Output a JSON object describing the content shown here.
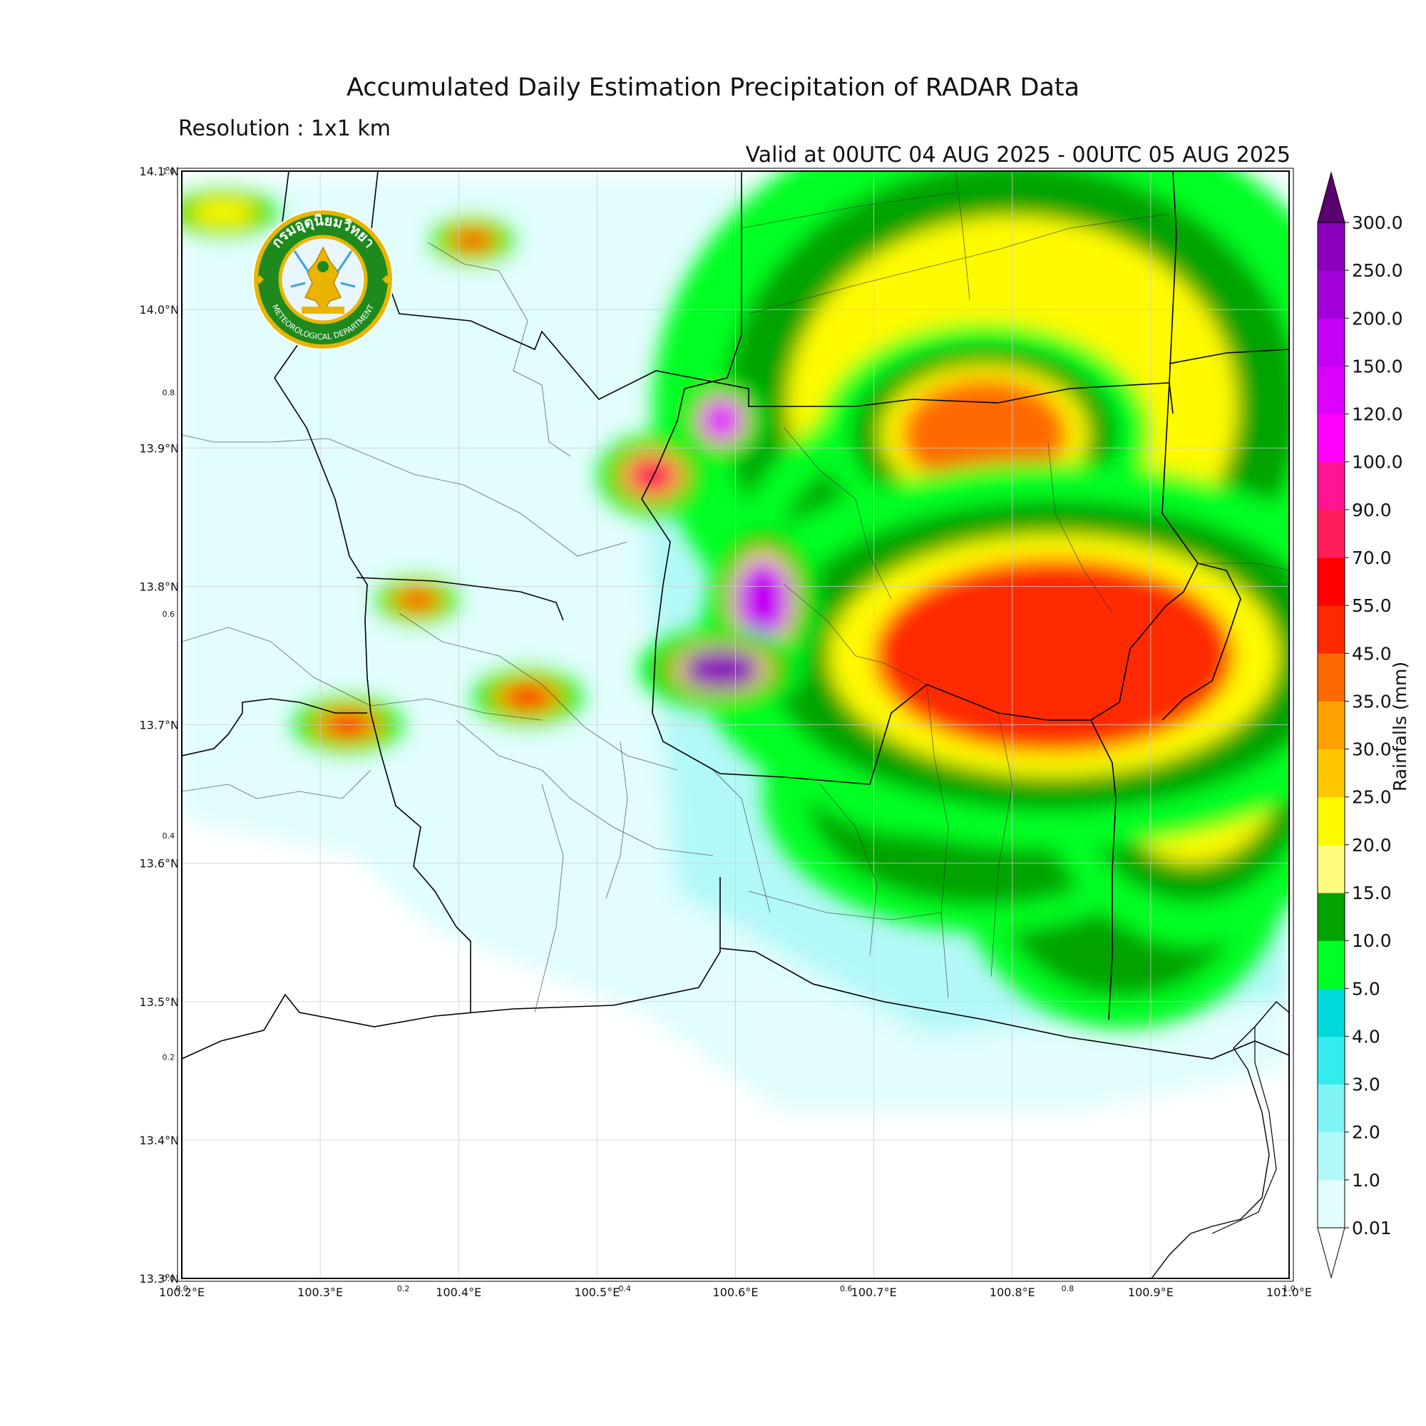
{
  "title": "Accumulated Daily Estimation Precipitation of RADAR Data",
  "subtitle": "Resolution : 1x1 km",
  "valid": "Valid at 00UTC 04 AUG 2025 - 00UTC 05 AUG 2025",
  "logo": {
    "text_top": "กรมอุตุนิยมวิทยา",
    "text_bottom": "METEOROLOGICAL DEPARTMENT",
    "ring_color": "#1e8a1e",
    "gold_color": "#e9b500"
  },
  "lat_labels": [
    "14.1°N",
    "14.0°N",
    "13.9°N",
    "13.8°N",
    "13.7°N",
    "13.6°N",
    "13.5°N",
    "13.4°N",
    "13.3°N"
  ],
  "lon_labels": [
    "100.2°E",
    "100.3°E",
    "100.4°E",
    "100.5°E",
    "100.6°E",
    "100.7°E",
    "100.8°E",
    "100.9°E",
    "101.0°E"
  ],
  "minor_y_labels": [
    "1.0",
    "0.8",
    "0.6",
    "0.4",
    "0.2",
    "0.0"
  ],
  "minor_x_labels": [
    "0.0",
    "0.2",
    "0.4",
    "0.6",
    "0.8",
    "1.0"
  ],
  "colorbar": {
    "label": "Rainfalls (mm)",
    "levels": [
      "0.01",
      "1.0",
      "2.0",
      "3.0",
      "4.0",
      "5.0",
      "10.0",
      "15.0",
      "20.0",
      "25.0",
      "30.0",
      "35.0",
      "45.0",
      "55.0",
      "70.0",
      "90.0",
      "100.0",
      "120.0",
      "150.0",
      "200.0",
      "250.0",
      "300.0"
    ],
    "colors": [
      "#e1fdfd",
      "#b3f8f8",
      "#7ff4f4",
      "#33ecec",
      "#00d9d9",
      "#00ff22",
      "#00a300",
      "#fffc80",
      "#fffa00",
      "#ffc800",
      "#ffa100",
      "#ff6a00",
      "#ff2b00",
      "#ff0000",
      "#ff1e5a",
      "#ff1493",
      "#ff00ff",
      "#dd00ff",
      "#c400f5",
      "#a100d9",
      "#8a00bc"
    ],
    "extend_min_color": "#ffffff",
    "extend_max_color": "#5a0070"
  },
  "map_extent": {
    "lon": [
      100.2,
      101.0
    ],
    "lat": [
      13.3,
      14.1
    ]
  },
  "rain_cells": [
    {
      "lon": 100.83,
      "lat": 13.75,
      "mm": 45,
      "rlon": 0.13,
      "rlat": 0.07
    },
    {
      "lon": 100.8,
      "lat": 13.93,
      "mm": 20,
      "rlon": 0.13,
      "rlat": 0.11
    },
    {
      "lon": 100.78,
      "lat": 13.91,
      "mm": 40,
      "rlon": 0.06,
      "rlat": 0.04
    },
    {
      "lon": 100.93,
      "lat": 13.7,
      "mm": 20,
      "rlon": 0.06,
      "rlat": 0.08
    },
    {
      "lon": 100.73,
      "lat": 13.78,
      "mm": 25,
      "rlon": 0.07,
      "rlat": 0.08
    },
    {
      "lon": 100.88,
      "lat": 13.6,
      "mm": 10,
      "rlon": 0.06,
      "rlat": 0.06
    },
    {
      "lon": 100.78,
      "lat": 13.65,
      "mm": 10,
      "rlon": 0.08,
      "rlat": 0.05
    },
    {
      "lon": 100.62,
      "lat": 13.79,
      "mm": 150,
      "rlon": 0.02,
      "rlat": 0.03
    },
    {
      "lon": 100.59,
      "lat": 13.74,
      "mm": 250,
      "rlon": 0.03,
      "rlat": 0.015
    },
    {
      "lon": 100.59,
      "lat": 13.92,
      "mm": 120,
      "rlon": 0.015,
      "rlat": 0.015
    },
    {
      "lon": 100.54,
      "lat": 13.88,
      "mm": 70,
      "rlon": 0.02,
      "rlat": 0.015
    },
    {
      "lon": 100.45,
      "lat": 13.72,
      "mm": 55,
      "rlon": 0.02,
      "rlat": 0.01
    },
    {
      "lon": 100.32,
      "lat": 13.7,
      "mm": 55,
      "rlon": 0.02,
      "rlat": 0.01
    },
    {
      "lon": 100.37,
      "lat": 13.79,
      "mm": 45,
      "rlon": 0.015,
      "rlat": 0.008
    },
    {
      "lon": 100.41,
      "lat": 14.05,
      "mm": 45,
      "rlon": 0.015,
      "rlat": 0.008
    },
    {
      "lon": 100.23,
      "lat": 14.07,
      "mm": 20,
      "rlon": 0.02,
      "rlat": 0.008
    }
  ]
}
